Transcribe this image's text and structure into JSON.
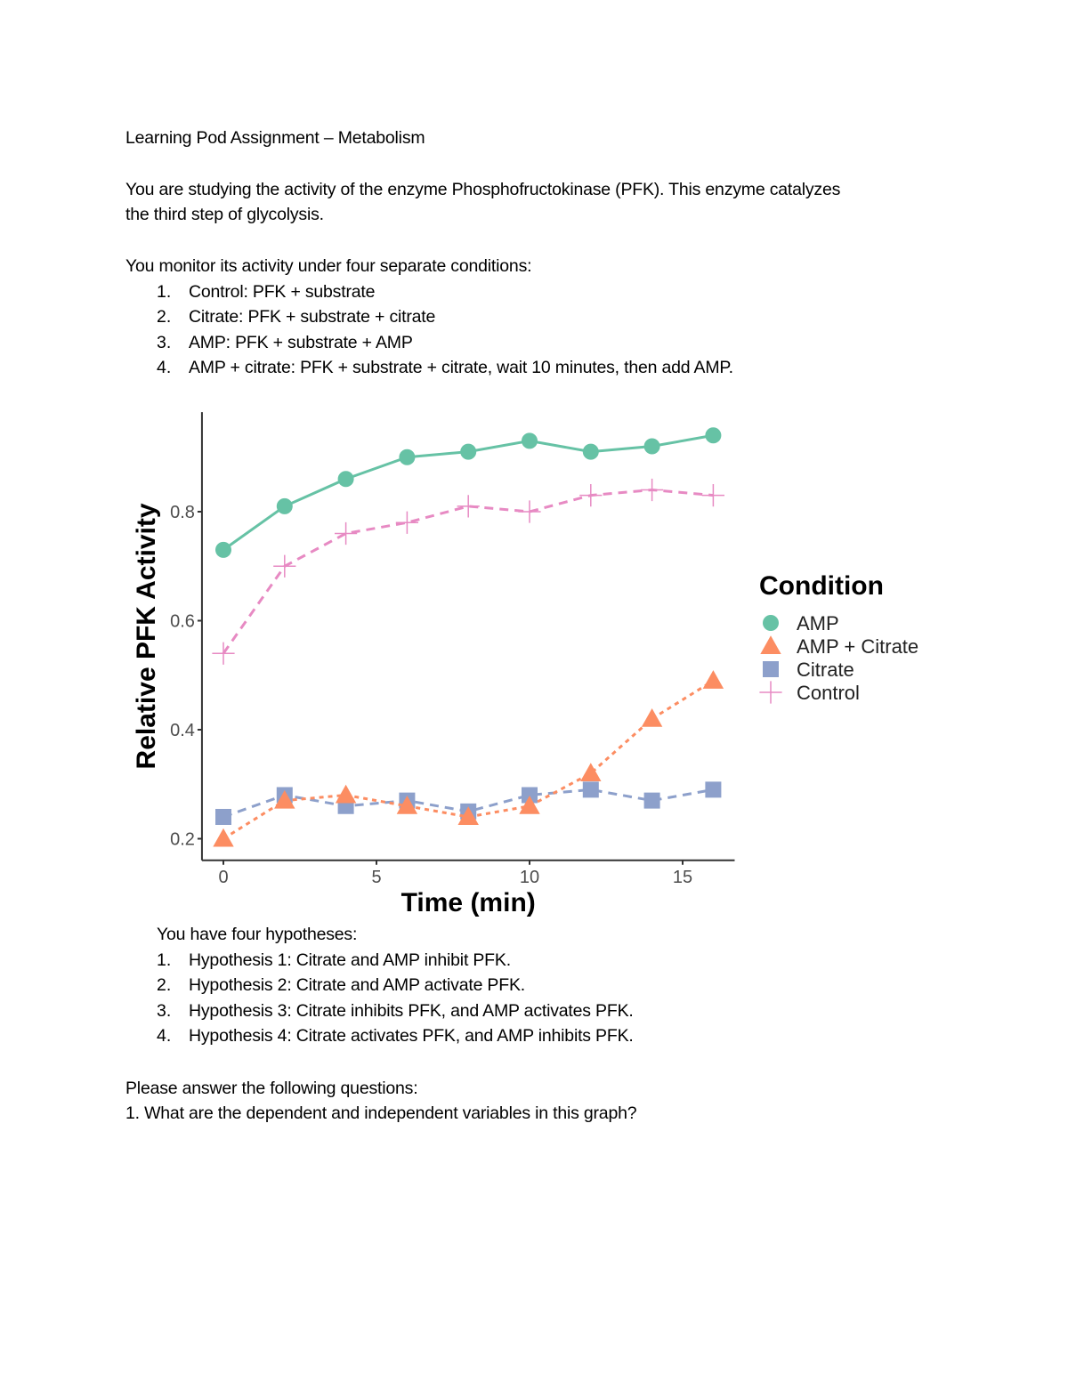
{
  "title": "Learning Pod Assignment – Metabolism",
  "intro": [
    "You are studying the activity of the enzyme Phosphofructokinase (PFK). This enzyme catalyzes",
    "the third step of glycolysis."
  ],
  "conditions_intro": "You monitor its activity under four separate conditions:",
  "conditions": [
    "Control: PFK + substrate",
    "Citrate:  PFK + substrate + citrate",
    "AMP: PFK + substrate + AMP",
    "AMP + citrate: PFK + substrate + citrate, wait 10 minutes, then add AMP."
  ],
  "hypotheses_intro": "You have four hypotheses:",
  "hypotheses": [
    "Hypothesis 1: Citrate and AMP inhibit PFK.",
    "Hypothesis 2: Citrate and AMP activate PFK.",
    "Hypothesis 3: Citrate inhibits PFK, and AMP activates PFK.",
    "Hypothesis 4: Citrate activates PFK, and AMP inhibits PFK."
  ],
  "questions_intro": "Please answer the following questions:",
  "questions": [
    "1. What are the dependent and independent variables in this graph?"
  ],
  "chart_data": {
    "type": "line",
    "xlabel": "Time (min)",
    "ylabel": "Relative PFK Activity",
    "xlim": [
      -0.7,
      16.7
    ],
    "ylim": [
      0.18,
      0.95
    ],
    "xticks": [
      0,
      5,
      10,
      15
    ],
    "yticks": [
      0.2,
      0.4,
      0.6,
      0.8
    ],
    "xtick_labels": [
      "0",
      "5",
      "10",
      "15"
    ],
    "ytick_labels": [
      "0.2",
      "0.4",
      "0.6",
      "0.8"
    ],
    "grid": false,
    "legend_title": "Condition",
    "legend_position": "right",
    "x": [
      0,
      2,
      4,
      6,
      8,
      10,
      12,
      14,
      16
    ],
    "series": [
      {
        "name": "AMP",
        "marker": "circle",
        "line": "solid",
        "color": "#66c2a5",
        "values": [
          0.73,
          0.81,
          0.86,
          0.9,
          0.91,
          0.93,
          0.91,
          0.92,
          0.94
        ]
      },
      {
        "name": "AMP + Citrate",
        "marker": "triangle",
        "line": "dotted",
        "color": "#fc8d62",
        "values": [
          0.2,
          0.27,
          0.28,
          0.26,
          0.24,
          0.26,
          0.32,
          0.42,
          0.49
        ]
      },
      {
        "name": "Citrate",
        "marker": "square",
        "line": "dashed",
        "color": "#8da0cb",
        "values": [
          0.24,
          0.28,
          0.26,
          0.27,
          0.25,
          0.28,
          0.29,
          0.27,
          0.29
        ]
      },
      {
        "name": "Control",
        "marker": "plus",
        "line": "dashed",
        "color": "#e78ac3",
        "values": [
          0.54,
          0.7,
          0.76,
          0.78,
          0.81,
          0.8,
          0.83,
          0.84,
          0.83
        ]
      }
    ]
  }
}
